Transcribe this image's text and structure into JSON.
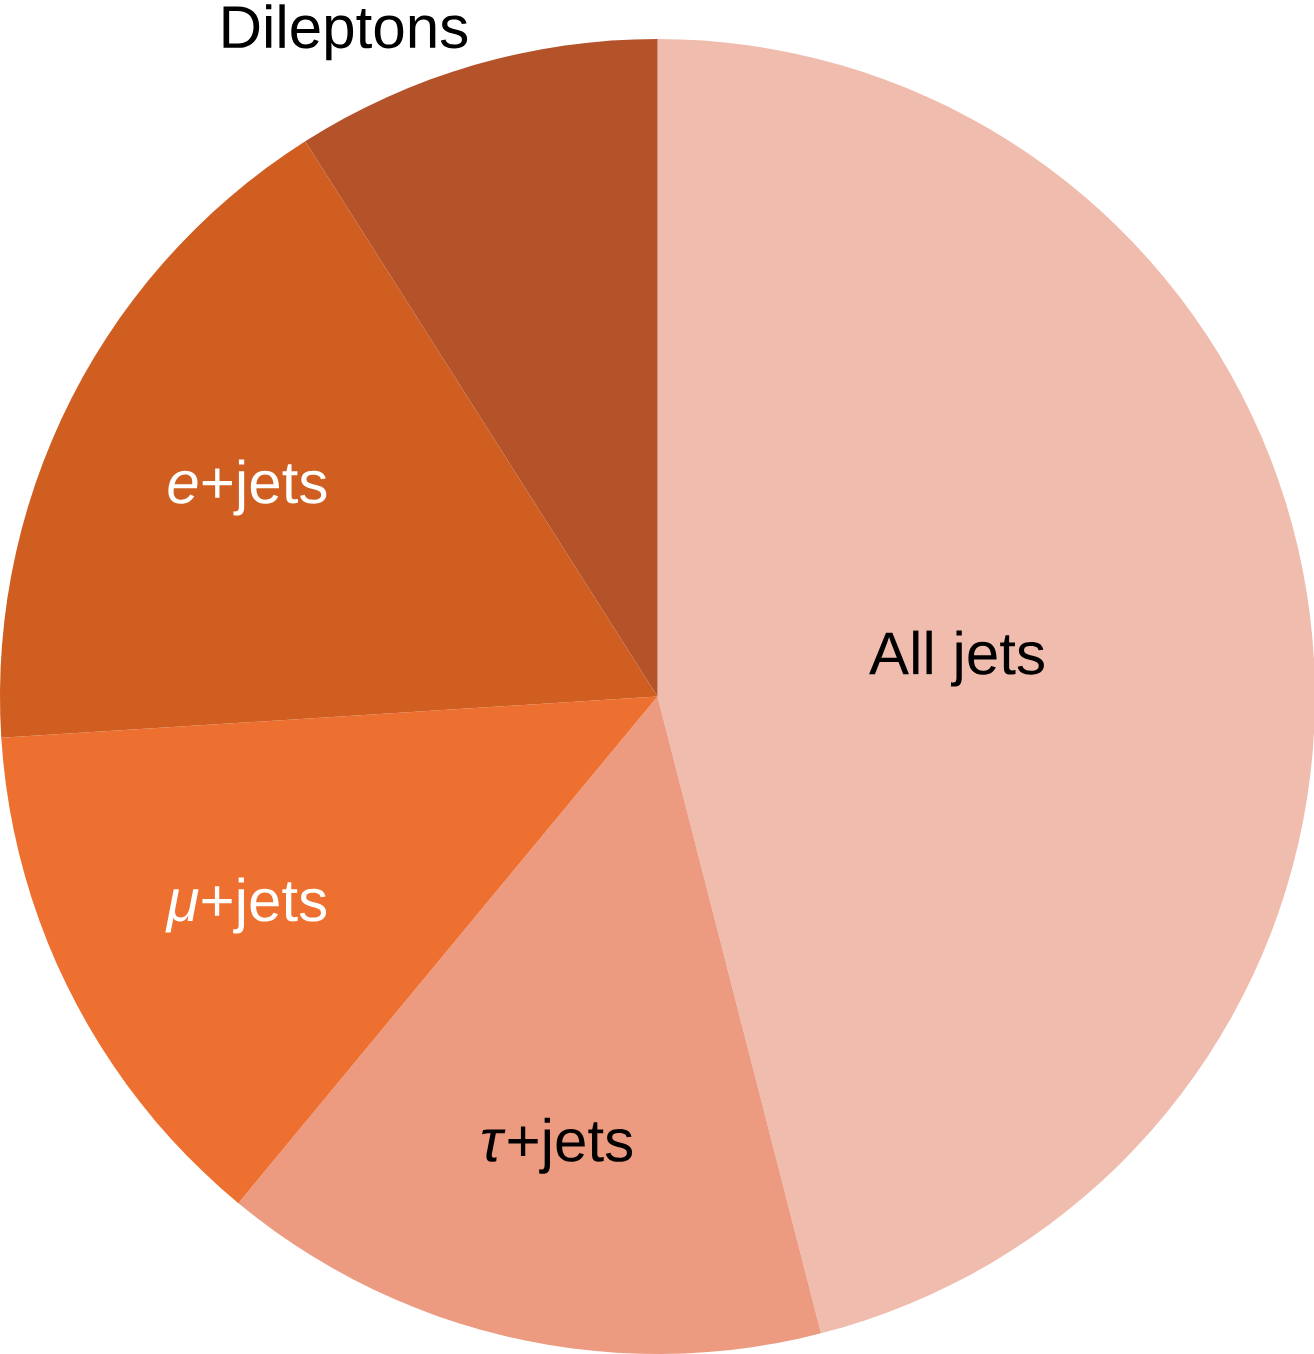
{
  "chart_data": {
    "type": "pie",
    "categories": [
      "All jets",
      "*τ*+jets",
      "*μ*+jets",
      "*e*+jets",
      "Dileptons"
    ],
    "values": [
      46,
      15,
      13,
      17,
      9
    ],
    "colors": [
      "#f0bcae",
      "#ec9a80",
      "#ee7030",
      "#d05e20",
      "#b4522a"
    ]
  }
}
